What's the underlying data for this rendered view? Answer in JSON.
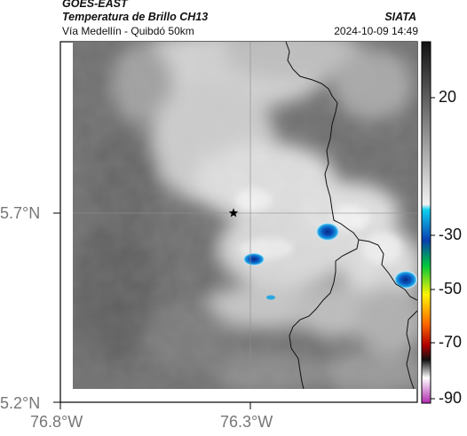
{
  "header": {
    "satellite": "GOES-EAST",
    "product": "Temperatura de Brillo CH13",
    "region": "Vía Medellín - Quibdó 50km",
    "source": "SIATA",
    "datetime": "2024-10-09 14:49"
  },
  "map": {
    "lat_ticks": [
      "5.7°N",
      "5.2°N"
    ],
    "lon_ticks": [
      "76.8°W",
      "76.3°W"
    ],
    "marker": "star-icon",
    "colors": {
      "cold_core": "#0a4fb0",
      "cloud_edge": "#2aa8e0",
      "gray_dark": "#666666",
      "gray_light": "#e6e6e6"
    }
  },
  "colorbar": {
    "ticks": [
      "20",
      "-30",
      "-50",
      "-70",
      "-90"
    ],
    "units": "",
    "gradient": [
      {
        "stop": 0.0,
        "color": "#111111"
      },
      {
        "stop": 0.45,
        "color": "#f2f2f2"
      },
      {
        "stop": 0.465,
        "color": "#0fd0f0"
      },
      {
        "stop": 0.55,
        "color": "#0a3fb0"
      },
      {
        "stop": 0.62,
        "color": "#00c83c"
      },
      {
        "stop": 0.7,
        "color": "#fff400"
      },
      {
        "stop": 0.78,
        "color": "#ff6a00"
      },
      {
        "stop": 0.84,
        "color": "#b00000"
      },
      {
        "stop": 0.88,
        "color": "#111111"
      },
      {
        "stop": 0.93,
        "color": "#ffffff"
      },
      {
        "stop": 1.0,
        "color": "#b02ab0"
      }
    ]
  }
}
